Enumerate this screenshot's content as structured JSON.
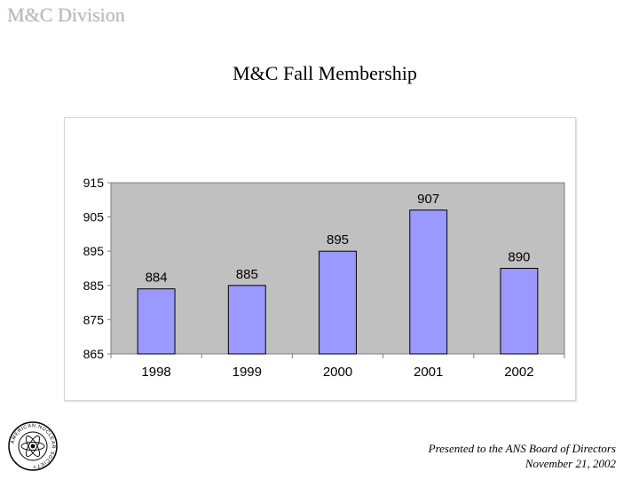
{
  "header": {
    "division": "M&C Division",
    "title": "M&C Fall Membership"
  },
  "footer": {
    "line1": "Presented to the ANS Board of Directors",
    "line2": "November 21, 2002"
  },
  "logo": {
    "name": "american-nuclear-society-seal",
    "text": "AMERICAN NUCLEAR SOCIETY"
  },
  "colors": {
    "plot_background": "#c0c0c0",
    "bar_fill": "#9999ff",
    "bar_stroke": "#000000",
    "division_text": "#b8b8b8"
  },
  "chart_data": {
    "type": "bar",
    "title": "",
    "xlabel": "",
    "ylabel": "",
    "categories": [
      "1998",
      "1999",
      "2000",
      "2001",
      "2002"
    ],
    "values": [
      884,
      885,
      895,
      907,
      890
    ],
    "data_labels": [
      "884",
      "885",
      "895",
      "907",
      "890"
    ],
    "ylim": [
      865,
      915
    ],
    "yticks": [
      865,
      875,
      885,
      895,
      905,
      915
    ],
    "ytick_labels": [
      "865",
      "875",
      "885",
      "895",
      "905",
      "915"
    ],
    "grid": false,
    "legend": "none"
  }
}
